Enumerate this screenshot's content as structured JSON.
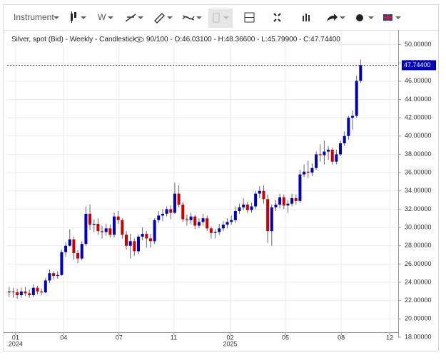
{
  "toolbar": {
    "instrument": "Instrument",
    "interval": "W"
  },
  "chart_data": {
    "type": "candlestick",
    "title": "Silver, spot (Bid) - Weekly - Candlestick",
    "subtitle": "90/100 - O:46.03100 - H:48.36600 - L:45.79900 - C:47.74400",
    "last_price_label": "47.74400",
    "up_color": "#0000bb",
    "down_color": "#cc0000",
    "grid": true,
    "open": [
      22.9,
      23.0,
      22.9,
      22.6,
      23.0,
      22.8,
      22.6,
      23.4,
      23.0,
      22.9,
      24.2,
      25.0,
      24.7,
      24.8,
      27.3,
      28.0,
      28.7,
      27.2,
      26.6,
      28.2,
      31.5,
      30.3,
      30.4,
      29.6,
      29.5,
      29.9,
      29.2,
      31.2,
      30.8,
      29.2,
      28.0,
      28.5,
      27.4,
      29.0,
      29.3,
      28.8,
      28.5,
      30.8,
      31.3,
      31.5,
      32.0,
      31.6,
      33.7,
      32.5,
      30.9,
      30.8,
      31.2,
      30.2,
      30.6,
      31.0,
      29.9,
      29.4,
      29.5,
      29.9,
      30.3,
      30.6,
      30.8,
      31.8,
      32.2,
      32.5,
      31.9,
      32.3,
      33.7,
      34.0,
      33.1,
      29.6,
      32.2,
      32.5,
      33.3,
      32.4,
      32.6,
      33.2,
      32.9,
      35.8,
      36.1,
      36.0,
      36.5,
      38.0,
      37.9,
      38.3,
      38.5,
      37.2,
      38.0,
      39.2,
      40.0,
      42.0,
      42.2,
      46.031
    ],
    "high": [
      23.5,
      23.4,
      23.3,
      23.4,
      23.5,
      23.2,
      23.8,
      23.6,
      23.3,
      24.5,
      25.4,
      25.2,
      25.2,
      27.6,
      28.4,
      29.8,
      29.0,
      27.5,
      28.5,
      32.3,
      32.5,
      30.9,
      31.0,
      30.2,
      30.4,
      30.3,
      31.6,
      31.8,
      31.0,
      29.6,
      29.3,
      28.8,
      29.2,
      30.0,
      29.6,
      29.3,
      31.0,
      31.8,
      32.0,
      32.3,
      32.4,
      34.9,
      34.6,
      32.8,
      31.4,
      31.6,
      31.4,
      31.0,
      31.5,
      31.3,
      30.1,
      29.8,
      30.4,
      30.7,
      31.0,
      31.3,
      32.3,
      32.6,
      33.2,
      32.8,
      32.7,
      34.0,
      34.5,
      34.6,
      33.6,
      32.5,
      33.0,
      33.7,
      33.6,
      33.0,
      33.7,
      33.6,
      36.3,
      36.9,
      37.3,
      37.0,
      38.3,
      39.1,
      39.5,
      38.9,
      38.7,
      38.5,
      39.5,
      40.5,
      42.2,
      42.8,
      46.6,
      48.366
    ],
    "low": [
      22.4,
      22.3,
      22.2,
      22.3,
      22.5,
      22.3,
      22.4,
      22.7,
      22.6,
      22.8,
      23.9,
      24.3,
      24.4,
      24.7,
      26.8,
      27.9,
      26.5,
      26.1,
      26.4,
      28.0,
      29.7,
      29.5,
      29.2,
      28.8,
      29.1,
      28.9,
      28.9,
      30.4,
      28.8,
      27.6,
      26.6,
      26.9,
      27.1,
      28.6,
      27.8,
      27.8,
      28.2,
      30.5,
      30.7,
      31.2,
      30.9,
      31.5,
      32.2,
      30.6,
      30.2,
      30.4,
      29.8,
      29.9,
      30.2,
      29.6,
      28.8,
      28.8,
      29.2,
      29.6,
      29.9,
      30.3,
      30.5,
      31.5,
      31.9,
      31.6,
      31.6,
      32.0,
      33.2,
      32.6,
      28.3,
      28.0,
      31.8,
      32.1,
      32.0,
      31.6,
      32.3,
      32.5,
      32.7,
      35.5,
      35.4,
      35.6,
      36.3,
      37.2,
      36.9,
      37.4,
      36.9,
      36.9,
      37.8,
      38.9,
      39.6,
      40.7,
      42.0,
      45.799
    ],
    "close": [
      23.0,
      22.9,
      22.6,
      23.0,
      22.8,
      22.6,
      23.4,
      23.0,
      22.9,
      24.2,
      25.0,
      24.7,
      24.8,
      27.3,
      28.0,
      28.7,
      27.2,
      26.6,
      28.2,
      31.5,
      30.3,
      30.4,
      29.6,
      29.5,
      29.9,
      29.2,
      31.2,
      30.8,
      29.2,
      28.0,
      28.5,
      27.4,
      29.0,
      29.3,
      28.8,
      28.5,
      30.8,
      31.3,
      31.5,
      32.0,
      31.6,
      33.7,
      32.5,
      30.9,
      30.8,
      31.2,
      30.2,
      30.6,
      31.0,
      29.9,
      29.4,
      29.5,
      29.9,
      30.3,
      30.6,
      30.8,
      31.8,
      32.2,
      32.5,
      31.9,
      32.3,
      33.7,
      34.0,
      33.1,
      29.6,
      32.2,
      32.5,
      33.3,
      32.4,
      32.6,
      33.2,
      32.9,
      35.8,
      36.1,
      36.0,
      36.5,
      38.0,
      37.9,
      38.3,
      38.5,
      37.2,
      38.0,
      39.2,
      40.0,
      42.0,
      42.2,
      46.03,
      47.744
    ],
    "xlim": [
      -0.5,
      96.3
    ],
    "xticks": [
      {
        "value": 1.6,
        "label": "01"
      },
      {
        "value": 13.5,
        "label": "04"
      },
      {
        "value": 27.2,
        "label": "07"
      },
      {
        "value": 40.8,
        "label": "11"
      },
      {
        "value": 54.7,
        "label": "02"
      },
      {
        "value": 68.4,
        "label": "05"
      },
      {
        "value": 82.2,
        "label": "08"
      },
      {
        "value": 94.2,
        "label": "12"
      }
    ],
    "year_labels": [
      {
        "value": 1.6,
        "label": "2024"
      },
      {
        "value": 54.7,
        "label": "2025"
      }
    ],
    "ylim": [
      18,
      51.6
    ],
    "yticks": [
      {
        "value": 18,
        "label": "18.00000"
      },
      {
        "value": 20,
        "label": "20.00000"
      },
      {
        "value": 22,
        "label": "22.00000"
      },
      {
        "value": 24,
        "label": "24.00000"
      },
      {
        "value": 26,
        "label": "26.00000"
      },
      {
        "value": 28,
        "label": "28.00000"
      },
      {
        "value": 30,
        "label": "30.00000"
      },
      {
        "value": 32,
        "label": "32.00000"
      },
      {
        "value": 34,
        "label": "34.00000"
      },
      {
        "value": 36,
        "label": "36.00000"
      },
      {
        "value": 38,
        "label": "38.00000"
      },
      {
        "value": 40,
        "label": "40.00000"
      },
      {
        "value": 42,
        "label": "42.00000"
      },
      {
        "value": 44,
        "label": "44.00000"
      },
      {
        "value": 46,
        "label": "46.00000"
      },
      {
        "value": 48,
        "label": "48.00000"
      },
      {
        "value": 50,
        "label": "50.00000"
      }
    ]
  }
}
